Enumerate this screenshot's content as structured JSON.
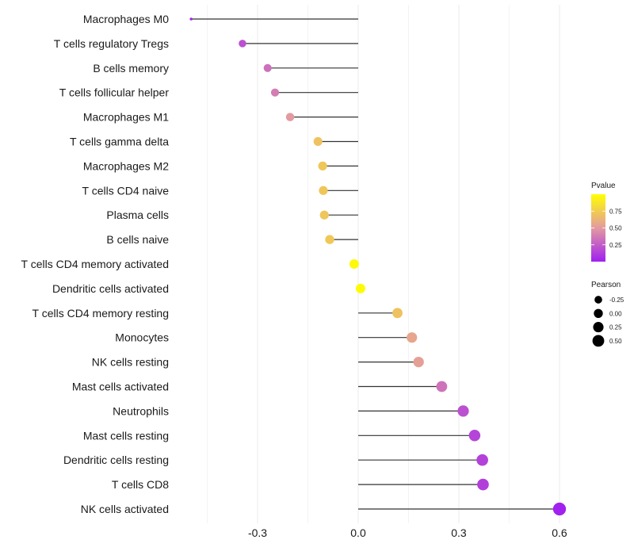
{
  "chart_data": {
    "type": "scatter",
    "subtype": "lollipop",
    "title": "",
    "xlabel": "",
    "ylabel": "",
    "xlim": [
      -0.52,
      0.62
    ],
    "x_ticks": [
      -0.3,
      0.0,
      0.3,
      0.6
    ],
    "x_tick_labels": [
      "-0.3",
      "0.0",
      "0.3",
      "0.6"
    ],
    "grid": true,
    "categories": [
      "Macrophages M0",
      "T cells regulatory  Tregs ",
      "B cells memory",
      "T cells follicular helper",
      "Macrophages M1",
      "T cells gamma delta",
      "Macrophages M2",
      "T cells CD4 naive",
      "Plasma cells",
      "B cells naive",
      "T cells CD4 memory activated",
      "Dendritic cells activated",
      "T cells CD4 memory resting",
      "Monocytes",
      "NK cells resting",
      "Mast cells activated",
      "Neutrophils",
      "Mast cells resting",
      "Dendritic cells resting",
      "T cells CD8",
      "NK cells activated"
    ],
    "series": [
      {
        "name": "Pearson",
        "values": [
          -0.498,
          -0.345,
          -0.27,
          -0.248,
          -0.203,
          -0.12,
          -0.106,
          -0.104,
          -0.101,
          -0.085,
          -0.012,
          0.007,
          0.117,
          0.16,
          0.18,
          0.249,
          0.313,
          0.347,
          0.37,
          0.372,
          0.6
        ]
      },
      {
        "name": "Pvalue",
        "values": [
          0.02,
          0.2,
          0.33,
          0.38,
          0.5,
          0.7,
          0.72,
          0.72,
          0.72,
          0.73,
          0.97,
          0.98,
          0.7,
          0.56,
          0.53,
          0.34,
          0.2,
          0.15,
          0.14,
          0.13,
          0.01
        ]
      }
    ],
    "legend": {
      "placement": "right",
      "color": {
        "title": "Pvalue",
        "ticks": [
          0.75,
          0.5,
          0.25
        ],
        "tick_labels": [
          "0.75",
          "0.50",
          "0.25"
        ],
        "range": [
          0.0,
          1.0
        ],
        "low_color": "#A020F0",
        "mid_color": "#E39AA0",
        "high_color": "#FFFF00"
      },
      "size": {
        "title": "Pearson",
        "values": [
          -0.25,
          0.0,
          0.25,
          0.5
        ],
        "labels": [
          "-0.25",
          "0.00",
          "0.25",
          "0.50"
        ]
      }
    }
  }
}
